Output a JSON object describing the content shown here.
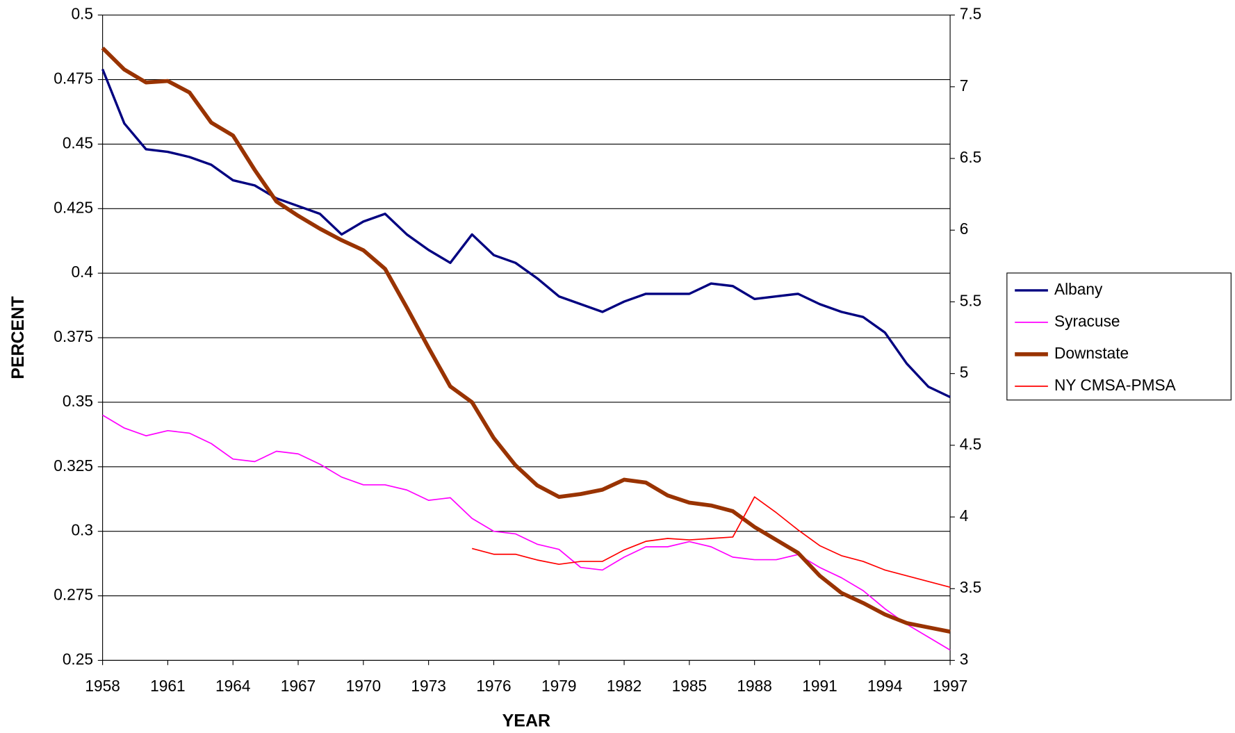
{
  "chart_data": {
    "type": "line",
    "xlabel": "YEAR",
    "ylabel": "PERCENT",
    "x": [
      1958,
      1959,
      1960,
      1961,
      1962,
      1963,
      1964,
      1965,
      1966,
      1967,
      1968,
      1969,
      1970,
      1971,
      1972,
      1973,
      1974,
      1975,
      1976,
      1977,
      1978,
      1979,
      1980,
      1981,
      1982,
      1983,
      1984,
      1985,
      1986,
      1987,
      1988,
      1989,
      1990,
      1991,
      1992,
      1993,
      1994,
      1995,
      1996,
      1997
    ],
    "xlim": [
      1958,
      1997
    ],
    "xticks": [
      1958,
      1961,
      1964,
      1967,
      1970,
      1973,
      1976,
      1979,
      1982,
      1985,
      1988,
      1991,
      1994,
      1997
    ],
    "ylim": [
      0.25,
      0.5
    ],
    "yticks": [
      0.25,
      0.275,
      0.3,
      0.325,
      0.35,
      0.375,
      0.4,
      0.425,
      0.45,
      0.475,
      0.5
    ],
    "y2lim": [
      3,
      7.5
    ],
    "y2ticks": [
      3,
      3.5,
      4,
      4.5,
      5,
      5.5,
      6,
      6.5,
      7,
      7.5
    ],
    "grid": true,
    "legend": "right",
    "series": [
      {
        "name": "Albany",
        "color": "#000080",
        "values": [
          0.479,
          0.458,
          0.448,
          0.447,
          0.445,
          0.442,
          0.436,
          0.434,
          0.429,
          0.426,
          0.423,
          0.415,
          0.42,
          0.423,
          0.415,
          0.409,
          0.404,
          0.415,
          0.407,
          0.404,
          0.398,
          0.391,
          0.388,
          0.385,
          0.389,
          0.392,
          0.392,
          0.392,
          0.396,
          0.395,
          0.39,
          0.391,
          0.392,
          0.388,
          0.385,
          0.383,
          0.377,
          0.365,
          0.356,
          0.352
        ]
      },
      {
        "name": "Syracuse",
        "color": "#ff00ff",
        "values": [
          0.345,
          0.34,
          0.337,
          0.339,
          0.338,
          0.334,
          0.328,
          0.327,
          0.331,
          0.33,
          0.326,
          0.321,
          0.318,
          0.318,
          0.316,
          0.312,
          0.313,
          0.305,
          0.3,
          0.299,
          0.295,
          0.293,
          0.286,
          0.285,
          0.29,
          0.294,
          0.294,
          0.296,
          0.294,
          0.29,
          0.289,
          0.289,
          0.291,
          0.286,
          0.282,
          0.277,
          0.27,
          0.264,
          0.259,
          0.254
        ]
      },
      {
        "name": "Downstate",
        "color": "#993300",
        "axis": "y2",
        "values": [
          7.27,
          7.12,
          7.03,
          7.04,
          6.96,
          6.75,
          6.66,
          6.42,
          6.2,
          6.1,
          6.01,
          5.93,
          5.86,
          5.73,
          5.46,
          5.18,
          4.91,
          4.8,
          4.55,
          4.36,
          4.22,
          4.14,
          4.16,
          4.19,
          4.26,
          4.24,
          4.15,
          4.1,
          4.08,
          4.04,
          3.93,
          3.84,
          3.75,
          3.59,
          3.47,
          3.4,
          3.32,
          3.26,
          3.23,
          3.2
        ]
      },
      {
        "name": "NY CMSA-PMSA",
        "color": "#ff0000",
        "axis": "y2",
        "values": [
          null,
          null,
          null,
          null,
          null,
          null,
          null,
          null,
          null,
          null,
          null,
          null,
          null,
          null,
          null,
          null,
          null,
          3.78,
          3.74,
          3.74,
          3.7,
          3.67,
          3.69,
          3.69,
          3.77,
          3.83,
          3.85,
          3.84,
          3.85,
          3.86,
          4.14,
          4.03,
          3.91,
          3.8,
          3.73,
          3.69,
          3.63,
          3.59,
          3.55,
          3.51
        ]
      }
    ]
  }
}
